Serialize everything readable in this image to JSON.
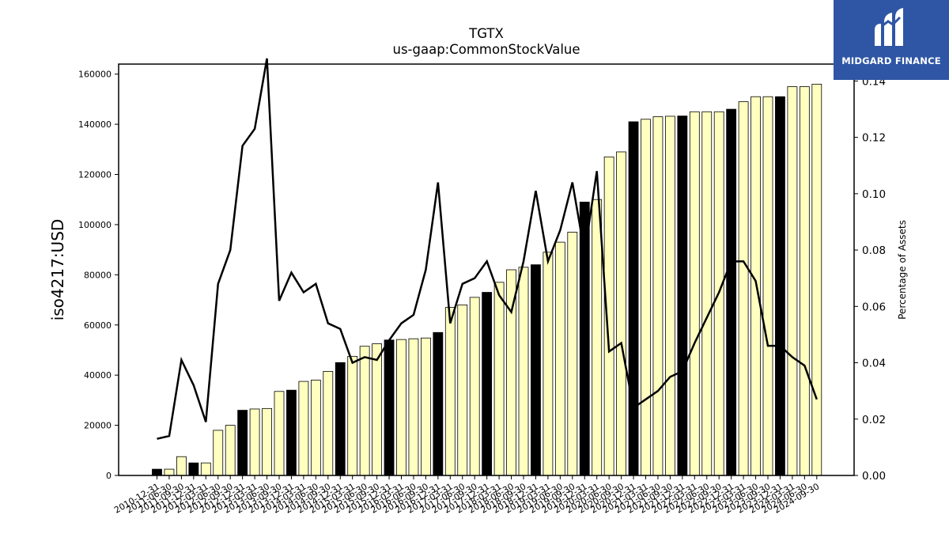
{
  "chart_data": {
    "type": "bar",
    "title": "TGTX",
    "subtitle": "us-gaap:CommonStockValue",
    "ylabel": "iso4217:USD",
    "y2label": "Percentage of Assets",
    "ylim": [
      0,
      164000
    ],
    "y2lim": [
      0,
      0.146
    ],
    "yticks": [
      0,
      20000,
      40000,
      60000,
      80000,
      100000,
      120000,
      140000,
      160000
    ],
    "y2ticks": [
      0.0,
      0.02,
      0.04,
      0.06,
      0.08,
      0.1,
      0.12,
      0.14
    ],
    "categories": [
      "2010-12-31",
      "2011-06-30",
      "2011-09-30",
      "2011-12-31",
      "2012-03-31",
      "2012-06-30",
      "2012-09-30",
      "2012-12-31",
      "2013-03-31",
      "2013-06-30",
      "2013-09-30",
      "2013-12-31",
      "2014-03-31",
      "2014-06-30",
      "2014-09-30",
      "2014-12-31",
      "2015-03-31",
      "2015-06-30",
      "2015-09-30",
      "2015-12-31",
      "2016-03-31",
      "2016-06-30",
      "2016-09-30",
      "2016-12-31",
      "2017-03-31",
      "2017-06-30",
      "2017-09-30",
      "2017-12-31",
      "2018-03-31",
      "2018-06-30",
      "2018-09-30",
      "2018-12-31",
      "2019-03-31",
      "2019-06-30",
      "2019-09-30",
      "2019-12-31",
      "2020-03-31",
      "2020-06-30",
      "2020-09-30",
      "2020-12-31",
      "2021-03-31",
      "2021-06-30",
      "2021-09-30",
      "2021-12-31",
      "2022-03-31",
      "2022-06-30",
      "2022-09-30",
      "2022-12-31",
      "2023-03-31",
      "2023-06-30",
      "2023-09-30",
      "2023-12-31",
      "2024-03-31",
      "2024-06-30",
      "2024-09-30"
    ],
    "series": [
      {
        "type": "bar",
        "values": [
          2500,
          2500,
          7500,
          5000,
          5000,
          18000,
          20000,
          26000,
          26500,
          26700,
          33500,
          34000,
          37500,
          38000,
          41500,
          45000,
          47500,
          51500,
          52500,
          54000,
          54200,
          54500,
          54800,
          57000,
          67000,
          68000,
          71000,
          73000,
          77000,
          82000,
          83000,
          84000,
          89000,
          93000,
          97000,
          109000,
          110000,
          127000,
          129000,
          141000,
          142000,
          143000,
          143200,
          143300,
          145000,
          145000,
          145000,
          146000,
          149000,
          151000,
          151000,
          151000,
          155000,
          155000,
          156000
        ],
        "colors": [
          "#000000",
          "#ffffc0",
          "#ffffc0",
          "#000000",
          "#ffffc0",
          "#ffffc0",
          "#ffffc0",
          "#000000",
          "#ffffc0",
          "#ffffc0",
          "#ffffc0",
          "#000000",
          "#ffffc0",
          "#ffffc0",
          "#ffffc0",
          "#000000",
          "#ffffc0",
          "#ffffc0",
          "#ffffc0",
          "#000000",
          "#ffffc0",
          "#ffffc0",
          "#ffffc0",
          "#000000",
          "#ffffc0",
          "#ffffc0",
          "#ffffc0",
          "#000000",
          "#ffffc0",
          "#ffffc0",
          "#ffffc0",
          "#000000",
          "#ffffc0",
          "#ffffc0",
          "#ffffc0",
          "#000000",
          "#ffffc0",
          "#ffffc0",
          "#ffffc0",
          "#000000",
          "#ffffc0",
          "#ffffc0",
          "#ffffc0",
          "#000000",
          "#ffffc0",
          "#ffffc0",
          "#ffffc0",
          "#000000",
          "#ffffc0",
          "#ffffc0",
          "#ffffc0",
          "#000000",
          "#ffffc0",
          "#ffffc0",
          "#ffffc0"
        ]
      },
      {
        "type": "line",
        "axis": "right",
        "color": "#000000",
        "values": [
          0.013,
          0.014,
          0.041,
          0.032,
          0.019,
          0.068,
          0.08,
          0.117,
          0.123,
          0.148,
          0.062,
          0.072,
          0.065,
          0.068,
          0.054,
          0.052,
          0.04,
          0.042,
          0.041,
          0.048,
          0.054,
          0.057,
          0.073,
          0.104,
          0.054,
          0.068,
          0.07,
          0.076,
          0.064,
          0.058,
          0.076,
          0.101,
          0.076,
          0.087,
          0.104,
          0.079,
          0.108,
          0.044,
          0.047,
          0.024,
          0.027,
          0.03,
          0.035,
          0.037,
          0.047,
          0.056,
          0.065,
          0.076,
          0.076,
          0.069,
          0.046,
          0.046,
          0.042,
          0.039,
          0.027
        ]
      }
    ]
  },
  "logo": {
    "text": "MIDGARD FINANCE",
    "background": "#2f56a5"
  }
}
